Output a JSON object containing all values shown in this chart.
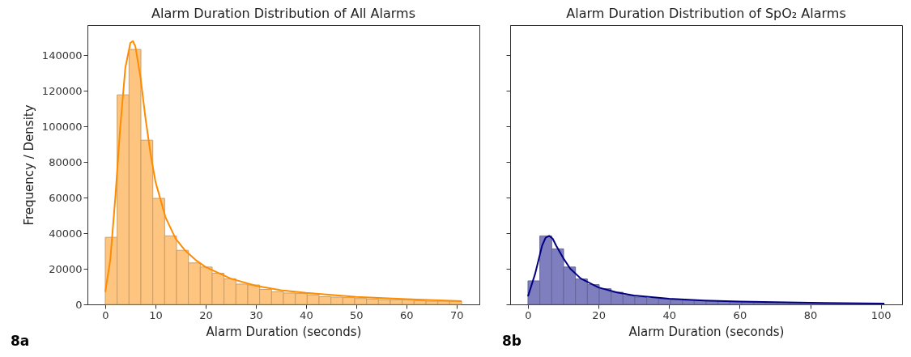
{
  "chart_data": [
    {
      "type": "histogram",
      "title": "Alarm Duration Distribution of All Alarms",
      "xlabel": "Alarm Duration (seconds)",
      "ylabel": "Frequency / Density",
      "xlim": [
        -3.55,
        74.55
      ],
      "xticks": [
        0,
        10,
        20,
        30,
        40,
        50,
        60,
        70
      ],
      "ylim": [
        0,
        157000
      ],
      "yticks": [
        0,
        20000,
        40000,
        60000,
        80000,
        100000,
        120000,
        140000
      ],
      "grid": false,
      "annotations": [
        "8a"
      ],
      "series": [
        {
          "type": "histogram",
          "color": "#fec580",
          "bins": [
            0,
            2.37,
            4.73,
            7.1,
            9.47,
            11.83,
            14.2,
            16.57,
            18.93,
            21.3,
            23.67,
            26.03,
            28.4,
            30.77,
            33.13,
            35.5,
            37.87,
            40.23,
            42.6,
            44.97,
            47.33,
            49.7,
            52.07,
            54.43,
            56.8,
            59.17,
            61.53,
            63.9,
            66.27,
            68.63,
            71
          ],
          "values": [
            37700,
            117800,
            143300,
            92300,
            59600,
            38500,
            30400,
            23300,
            21000,
            17500,
            14400,
            11400,
            10900,
            8400,
            7100,
            6400,
            6100,
            5300,
            4300,
            4100,
            3800,
            3300,
            3000,
            2600,
            2600,
            2600,
            2000,
            1800,
            1800,
            1800
          ]
        },
        {
          "type": "line",
          "color": "#ff8c00",
          "x": [
            0,
            1,
            2,
            3,
            4,
            5,
            5.5,
            6,
            7,
            8,
            9,
            10,
            12,
            14,
            16,
            18,
            20,
            25,
            30,
            35,
            40,
            50,
            60,
            71
          ],
          "values": [
            7000,
            25000,
            60000,
            100000,
            133000,
            147000,
            148000,
            145000,
            128000,
            105000,
            85000,
            69000,
            49000,
            37000,
            30000,
            25000,
            21000,
            14500,
            10500,
            8000,
            6500,
            4200,
            3000,
            1800
          ]
        }
      ]
    },
    {
      "type": "histogram",
      "title": "Alarm Duration Distribution of SpO₂ Alarms",
      "xlabel": "Alarm Duration (seconds)",
      "xlim": [
        -5.05,
        106.05
      ],
      "xticks": [
        0,
        20,
        40,
        60,
        80,
        100
      ],
      "ylim": [
        0,
        157000
      ],
      "yticks": [
        0,
        20000,
        40000,
        60000,
        80000,
        100000,
        120000,
        140000
      ],
      "tick_labels": "x",
      "grid": false,
      "annotations": [
        "8b"
      ],
      "series": [
        {
          "type": "histogram",
          "color": "#7f7fbf",
          "bins": [
            0,
            3.37,
            6.73,
            10.1,
            13.47,
            16.83,
            20.2,
            23.57,
            26.93,
            30.3,
            33.67,
            37.03,
            40.4,
            43.77,
            47.13,
            50.5,
            53.87,
            57.23,
            60.6,
            63.97,
            67.33,
            70.7,
            74.07,
            77.43,
            80.8,
            84.17,
            87.53,
            90.9,
            94.27,
            97.63,
            101
          ],
          "values": [
            13200,
            38500,
            31200,
            21000,
            14300,
            11100,
            8800,
            6800,
            5000,
            4100,
            3300,
            3000,
            2600,
            2300,
            2000,
            1700,
            1500,
            1300,
            1200,
            1000,
            900,
            800,
            700,
            700,
            600,
            600,
            500,
            500,
            400,
            400
          ]
        },
        {
          "type": "line",
          "color": "#000080",
          "x": [
            0,
            2,
            4,
            5,
            6,
            7,
            8,
            10,
            12,
            15,
            20,
            25,
            30,
            40,
            50,
            60,
            80,
            101
          ],
          "values": [
            4500,
            17000,
            33000,
            37500,
            38500,
            37000,
            33000,
            26000,
            20000,
            14500,
            9500,
            6800,
            5000,
            3200,
            2200,
            1600,
            900,
            500
          ]
        }
      ]
    }
  ]
}
